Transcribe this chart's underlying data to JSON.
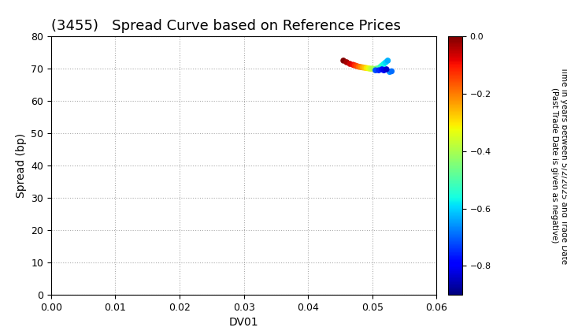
{
  "title": "(3455)   Spread Curve based on Reference Prices",
  "xlabel": "DV01",
  "ylabel": "Spread (bp)",
  "xlim": [
    0.0,
    0.06
  ],
  "ylim": [
    0,
    80
  ],
  "xticks": [
    0.0,
    0.01,
    0.02,
    0.03,
    0.04,
    0.05,
    0.06
  ],
  "yticks": [
    0,
    10,
    20,
    30,
    40,
    50,
    60,
    70,
    80
  ],
  "colorbar_label": "Time in years between 5/2/2025 and Trade Date\n(Past Trade Date is given as negative)",
  "colorbar_min": -0.9,
  "colorbar_max": 0.0,
  "colorbar_ticks": [
    0.0,
    -0.2,
    -0.4,
    -0.6,
    -0.8
  ],
  "background_color": "#ffffff",
  "grid_color": "#aaaaaa",
  "title_fontsize": 13,
  "axis_fontsize": 10,
  "scatter_points": {
    "x": [
      0.0455,
      0.046,
      0.0465,
      0.047,
      0.0473,
      0.0476,
      0.0479,
      0.0482,
      0.0485,
      0.0488,
      0.0491,
      0.0494,
      0.0497,
      0.05,
      0.0503,
      0.0506,
      0.0509,
      0.0512,
      0.0515,
      0.0518,
      0.0521,
      0.0524,
      0.0527,
      0.053,
      0.0505,
      0.051,
      0.0515,
      0.0518,
      0.0522
    ],
    "y": [
      72.5,
      72.0,
      71.5,
      71.2,
      71.0,
      70.8,
      70.6,
      70.5,
      70.4,
      70.3,
      70.2,
      70.1,
      70.0,
      70.0,
      69.9,
      70.0,
      70.1,
      70.5,
      71.0,
      71.5,
      72.0,
      72.5,
      69.0,
      69.2,
      69.5,
      69.5,
      69.8,
      69.5,
      69.8
    ],
    "color_values": [
      0.0,
      -0.03,
      -0.06,
      -0.09,
      -0.12,
      -0.15,
      -0.18,
      -0.21,
      -0.24,
      -0.27,
      -0.3,
      -0.33,
      -0.36,
      -0.39,
      -0.42,
      -0.45,
      -0.48,
      -0.51,
      -0.54,
      -0.57,
      -0.6,
      -0.63,
      -0.66,
      -0.69,
      -0.72,
      -0.75,
      -0.78,
      -0.81,
      -0.84
    ]
  }
}
